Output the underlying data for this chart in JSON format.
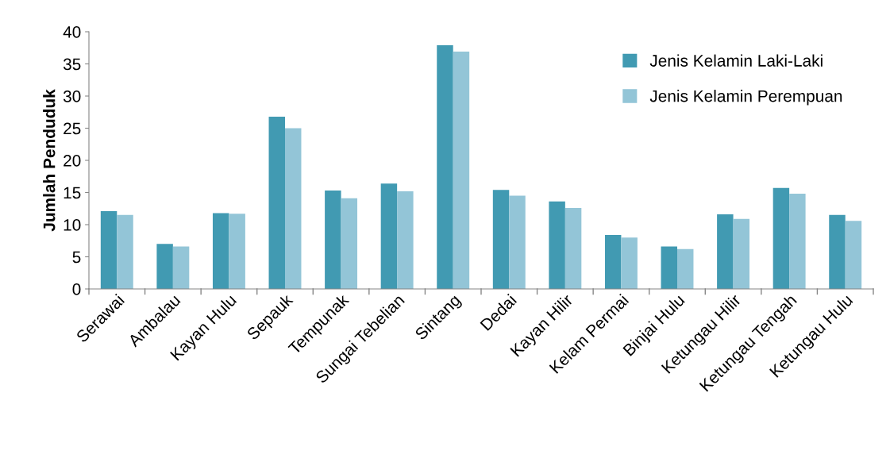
{
  "chart_data": {
    "type": "bar",
    "ylabel": "Jumlah Penduduk",
    "categories": [
      "Serawai",
      "Ambalau",
      "Kayan Hulu",
      "Sepauk",
      "Tempunak",
      "Sungai Tebelian",
      "Sintang",
      "Dedai",
      "Kayan Hilir",
      "Kelam Permai",
      "Binjai Hulu",
      "Ketungau Hilir",
      "Ketungau Tengah",
      "Ketungau Hulu"
    ],
    "series": [
      {
        "name": "Jenis Kelamin Laki-Laki",
        "color": "#419ab2",
        "values": [
          12.1,
          7.0,
          11.8,
          26.8,
          15.3,
          16.4,
          37.9,
          15.4,
          13.6,
          8.4,
          6.6,
          11.6,
          15.7,
          11.5
        ]
      },
      {
        "name": "Jenis Kelamin Perempuan",
        "color": "#93c5d7",
        "values": [
          11.5,
          6.6,
          11.7,
          25.0,
          14.1,
          15.2,
          36.9,
          14.5,
          12.6,
          8.0,
          6.2,
          10.9,
          14.8,
          10.6
        ]
      }
    ],
    "ylim": [
      0,
      40
    ],
    "yticks": [
      0,
      5,
      10,
      15,
      20,
      25,
      30,
      35,
      40
    ],
    "grid": false,
    "legend": "top right"
  }
}
